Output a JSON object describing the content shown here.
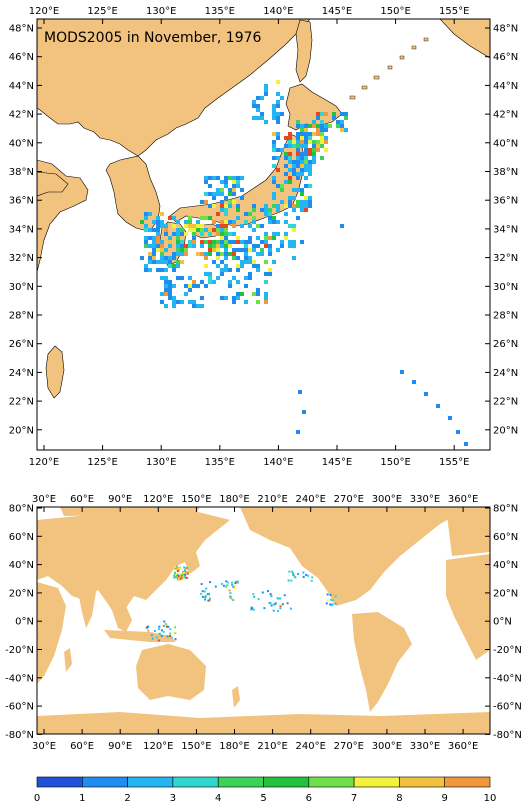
{
  "title": "MODS2005 in November, 1976",
  "colors": {
    "land": "#f2c27f",
    "ocean": "#ffffff",
    "frame": "#000000"
  },
  "map1": {
    "lon_labels": [
      "120°E",
      "125°E",
      "130°E",
      "135°E",
      "140°E",
      "145°E",
      "150°E",
      "155°E"
    ],
    "lat_labels": [
      "48°N",
      "46°N",
      "44°N",
      "42°N",
      "40°N",
      "38°N",
      "36°N",
      "34°N",
      "32°N",
      "30°N",
      "28°N",
      "26°N",
      "24°N",
      "22°N",
      "20°N"
    ]
  },
  "map2": {
    "lon_labels": [
      "30°E",
      "60°E",
      "90°E",
      "120°E",
      "150°E",
      "180°E",
      "210°E",
      "240°E",
      "270°E",
      "300°E",
      "330°E",
      "360°E"
    ],
    "lat_labels": [
      "80°N",
      "60°N",
      "40°N",
      "20°N",
      "0°N",
      "-20°N",
      "-40°N",
      "-60°N",
      "-80°N"
    ]
  },
  "colorbar": {
    "labels": [
      "0",
      "1",
      "2",
      "3",
      "4",
      "5",
      "6",
      "7",
      "8",
      "9",
      "10"
    ],
    "colors": [
      "#1f52d8",
      "#1f8cf0",
      "#22b7f2",
      "#2ed8d0",
      "#3cd25a",
      "#22c23c",
      "#6fe04a",
      "#f2f23c",
      "#f2c23c",
      "#f2983c",
      "#e8461e"
    ]
  }
}
